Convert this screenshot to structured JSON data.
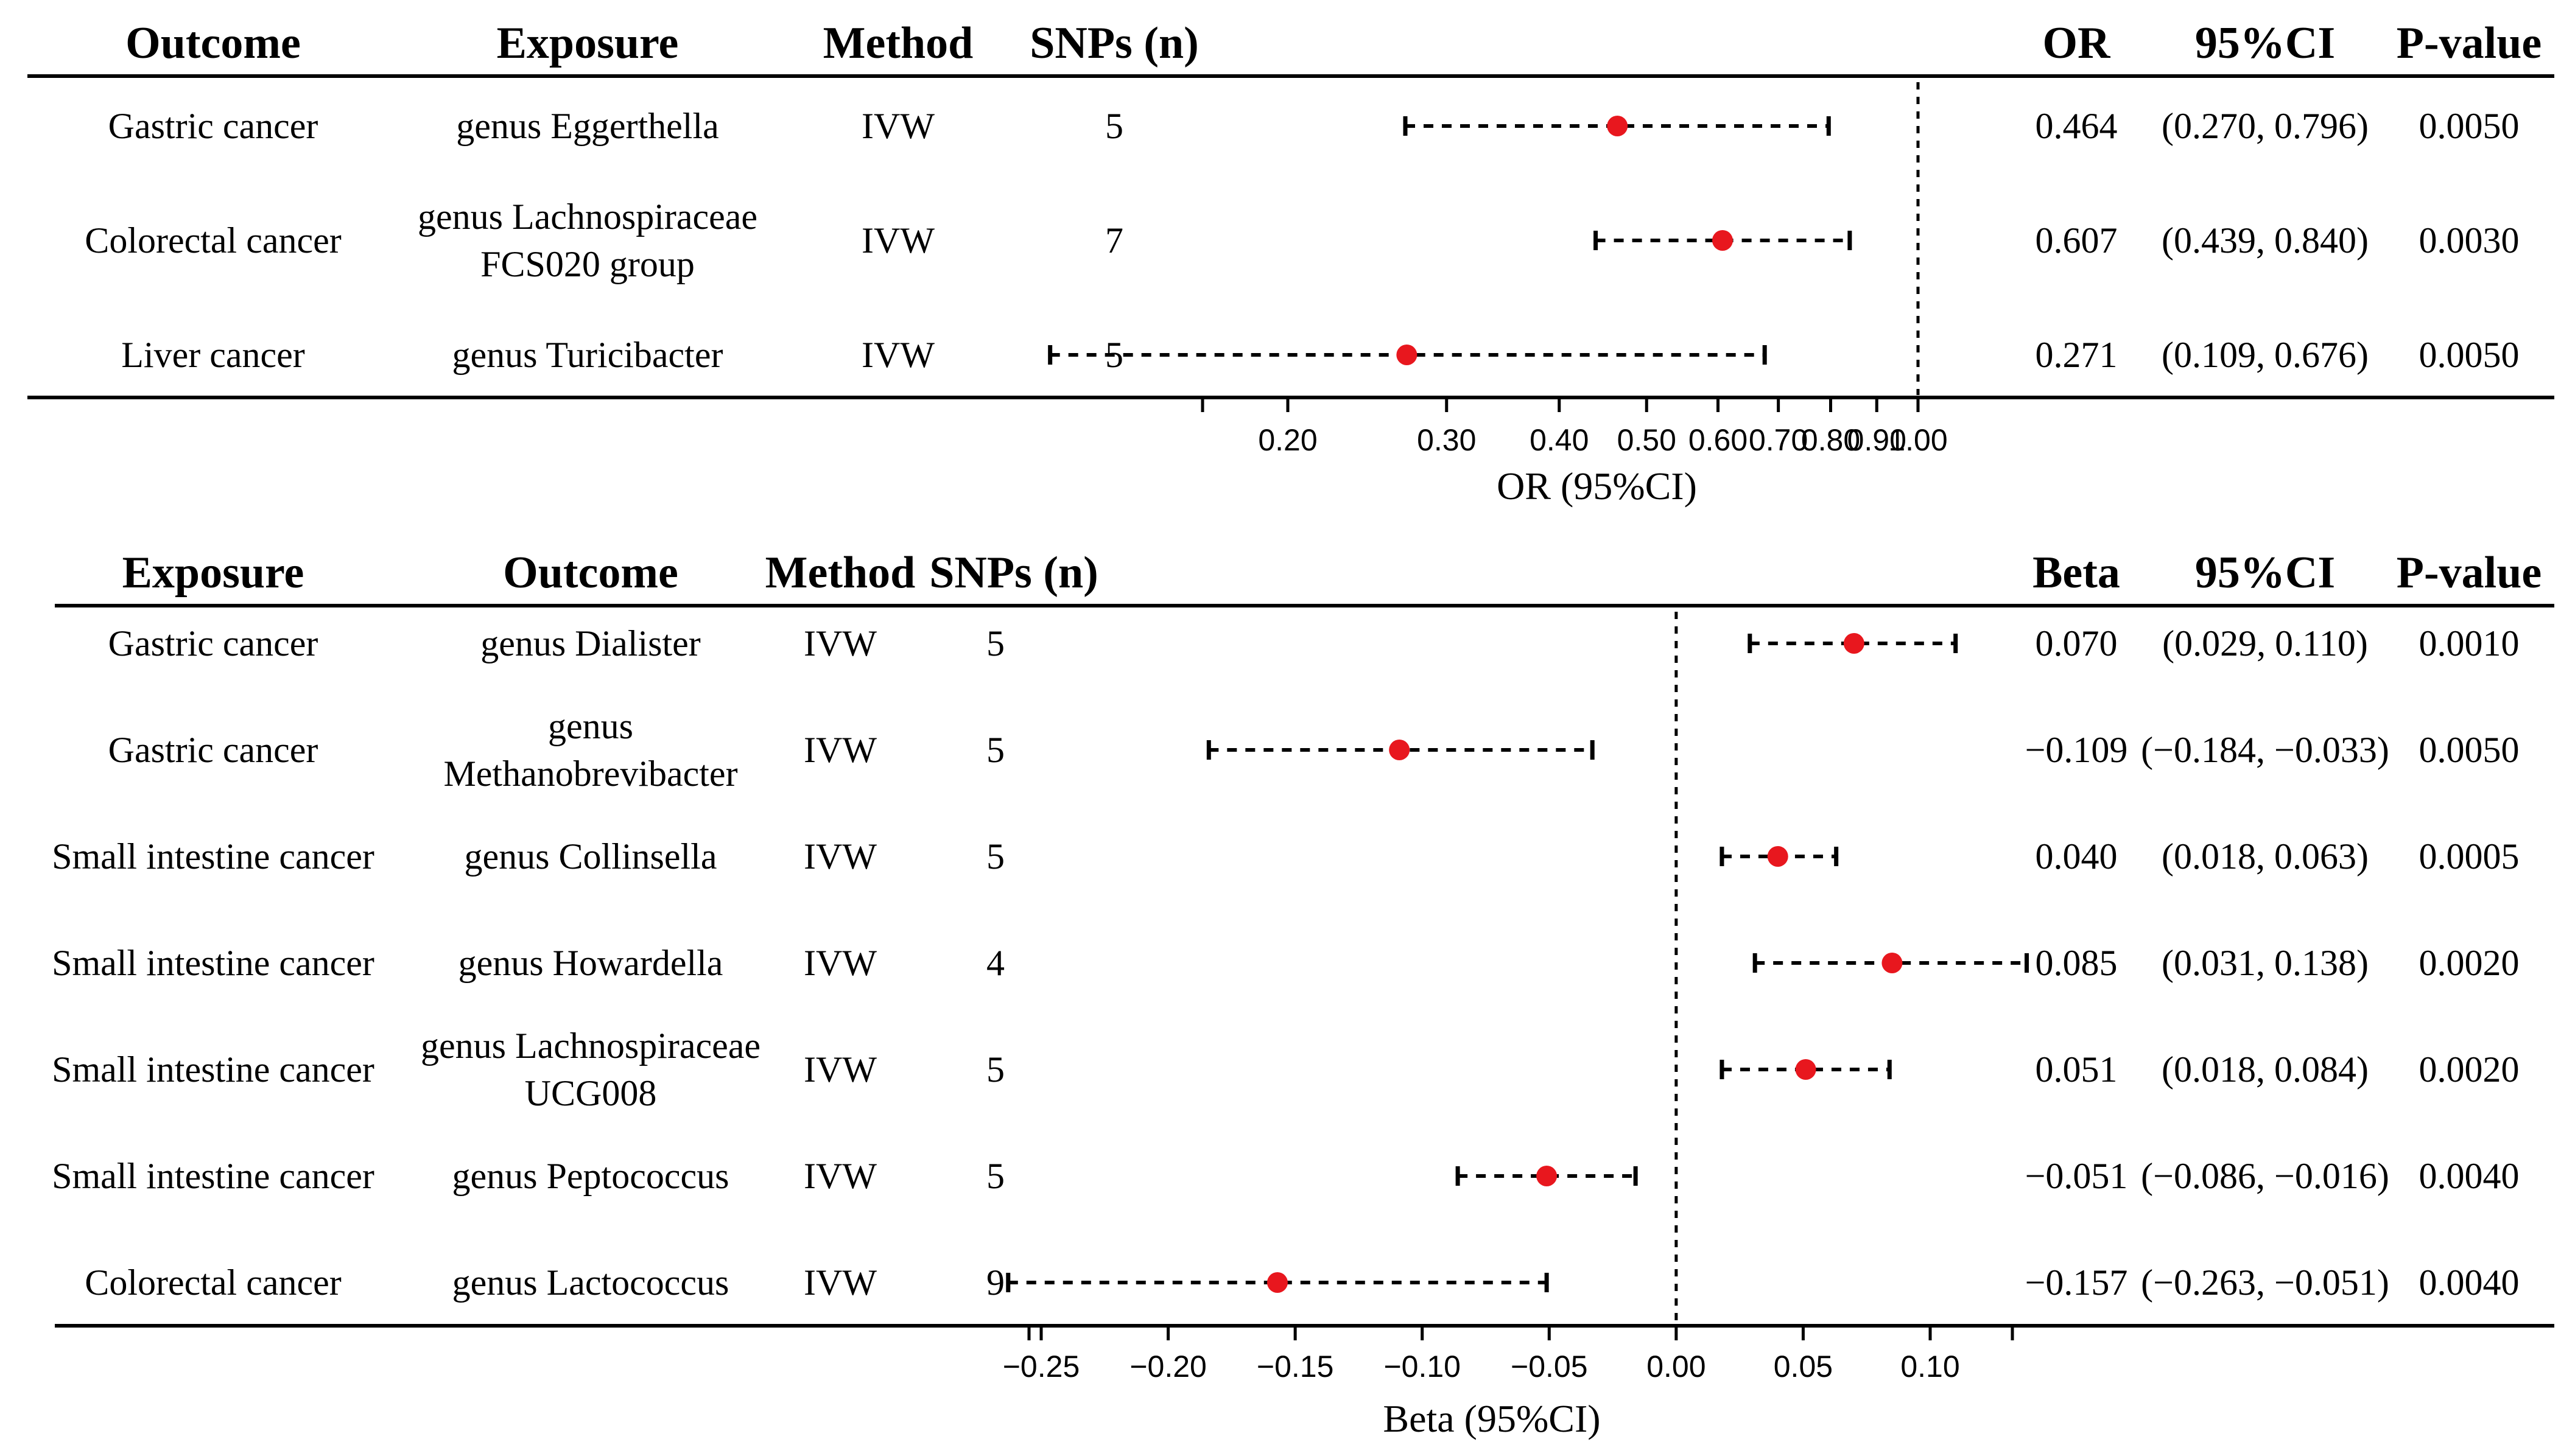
{
  "chart_data": [
    {
      "type": "forest",
      "panel": "top",
      "headers": {
        "col1": "Outcome",
        "col2": "Exposure",
        "method": "Method",
        "snps": "SNPs (n)",
        "est": "OR",
        "ci": "95%CI",
        "p": "P-value"
      },
      "xlabel": "OR (95%CI)",
      "scale": "log",
      "reference_line": 1.0,
      "axis_ticks": [
        "0.20",
        "0.30",
        "0.40",
        "0.50",
        "0.60",
        "0.70",
        "0.80",
        "0.90",
        "1.00"
      ],
      "rows": [
        {
          "col1": "Gastric cancer",
          "col2": [
            "genus Eggerthella"
          ],
          "method": "IVW",
          "snps": "5",
          "est": 0.464,
          "lo": 0.27,
          "hi": 0.796,
          "est_text": "0.464",
          "ci_text": "(0.270, 0.796)",
          "p_text": "0.0050"
        },
        {
          "col1": "Colorectal cancer",
          "col2": [
            "genus Lachnospiraceae",
            "FCS020 group"
          ],
          "method": "IVW",
          "snps": "7",
          "est": 0.607,
          "lo": 0.439,
          "hi": 0.84,
          "est_text": "0.607",
          "ci_text": "(0.439, 0.840)",
          "p_text": "0.0030"
        },
        {
          "col1": "Liver cancer",
          "col2": [
            "genus Turicibacter"
          ],
          "method": "IVW",
          "snps": "5",
          "est": 0.271,
          "lo": 0.109,
          "hi": 0.676,
          "est_text": "0.271",
          "ci_text": "(0.109, 0.676)",
          "p_text": "0.0050"
        }
      ]
    },
    {
      "type": "forest",
      "panel": "bottom",
      "headers": {
        "col1": "Exposure",
        "col2": "Outcome",
        "method": "Method",
        "snps": "SNPs (n)",
        "est": "Beta",
        "ci": "95%CI",
        "p": "P-value"
      },
      "xlabel": "Beta (95%CI)",
      "scale": "linear",
      "reference_line": 0.0,
      "axis_ticks": [
        "−0.25",
        "−0.20",
        "−0.15",
        "−0.10",
        "−0.05",
        "0.00",
        "0.05",
        "0.10"
      ],
      "rows": [
        {
          "col1": "Gastric cancer",
          "col2": [
            "genus Dialister"
          ],
          "method": "IVW",
          "snps": "5",
          "est": 0.07,
          "lo": 0.029,
          "hi": 0.11,
          "est_text": "0.070",
          "ci_text": "(0.029, 0.110)",
          "p_text": "0.0010"
        },
        {
          "col1": "Gastric cancer",
          "col2": [
            "genus",
            "Methanobrevibacter"
          ],
          "method": "IVW",
          "snps": "5",
          "est": -0.109,
          "lo": -0.184,
          "hi": -0.033,
          "est_text": "−0.109",
          "ci_text": "(−0.184, −0.033)",
          "p_text": "0.0050"
        },
        {
          "col1": "Small intestine cancer",
          "col2": [
            "genus Collinsella"
          ],
          "method": "IVW",
          "snps": "5",
          "est": 0.04,
          "lo": 0.018,
          "hi": 0.063,
          "est_text": "0.040",
          "ci_text": "(0.018, 0.063)",
          "p_text": "0.0005"
        },
        {
          "col1": "Small intestine cancer",
          "col2": [
            "genus Howardella"
          ],
          "method": "IVW",
          "snps": "4",
          "est": 0.085,
          "lo": 0.031,
          "hi": 0.138,
          "est_text": "0.085",
          "ci_text": "(0.031, 0.138)",
          "p_text": "0.0020"
        },
        {
          "col1": "Small intestine cancer",
          "col2": [
            "genus Lachnospiraceae",
            "UCG008"
          ],
          "method": "IVW",
          "snps": "5",
          "est": 0.051,
          "lo": 0.018,
          "hi": 0.084,
          "est_text": "0.051",
          "ci_text": "(0.018, 0.084)",
          "p_text": "0.0020"
        },
        {
          "col1": "Small intestine cancer",
          "col2": [
            "genus Peptococcus"
          ],
          "method": "IVW",
          "snps": "5",
          "est": -0.051,
          "lo": -0.086,
          "hi": -0.016,
          "est_text": "−0.051",
          "ci_text": "(−0.086, −0.016)",
          "p_text": "0.0040"
        },
        {
          "col1": "Colorectal cancer",
          "col2": [
            "genus Lactococcus"
          ],
          "method": "IVW",
          "snps": "9",
          "est": -0.157,
          "lo": -0.263,
          "hi": -0.051,
          "est_text": "−0.157",
          "ci_text": "(−0.263, −0.051)",
          "p_text": "0.0040"
        }
      ]
    }
  ],
  "colors": {
    "point": "#e8171e",
    "line": "#000000"
  }
}
